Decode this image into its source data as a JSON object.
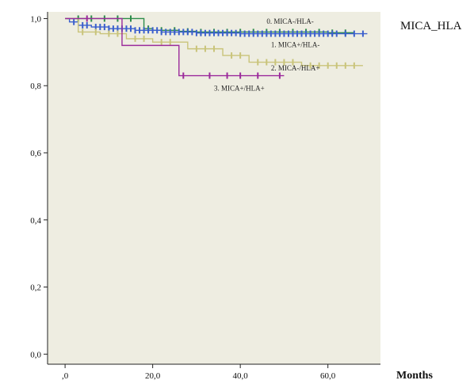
{
  "chart_data": {
    "type": "line",
    "subtype": "kaplan-meier step",
    "legend_title": "MICA_HLA",
    "xlabel": "Months",
    "ylabel": "",
    "xlim": [
      -4,
      72
    ],
    "ylim": [
      -0.03,
      1.02
    ],
    "x_ticks": [
      0,
      20,
      40,
      60
    ],
    "x_tick_labels": [
      ",0",
      "20,0",
      "40,0",
      "60,0"
    ],
    "y_ticks": [
      0,
      0.2,
      0.4,
      0.6,
      0.8,
      1.0
    ],
    "y_tick_labels": [
      "0,0",
      "0,2",
      "0,4",
      "0,6",
      "0,8",
      "1,0"
    ],
    "grid": false,
    "plot_background": "#eeede1",
    "series": [
      {
        "name": "0. MICA-/HLA-",
        "color": "#2c8c4a",
        "steps": [
          [
            0,
            1.0
          ],
          [
            18,
            0.97
          ],
          [
            20,
            0.965
          ],
          [
            26,
            0.962
          ],
          [
            30,
            0.96
          ],
          [
            60,
            0.958
          ],
          [
            66,
            0.958
          ]
        ],
        "censors": [
          3,
          6,
          9,
          12,
          15,
          19,
          22,
          25,
          28,
          31,
          34,
          37,
          40,
          43,
          46,
          49,
          52,
          55,
          58,
          61,
          64
        ],
        "label_at": [
          0.0,
          0.0
        ]
      },
      {
        "name": "1. MICA+/HLA-",
        "color": "#3a5fcd",
        "steps": [
          [
            0,
            1.0
          ],
          [
            1,
            0.99
          ],
          [
            3,
            0.98
          ],
          [
            6,
            0.975
          ],
          [
            10,
            0.97
          ],
          [
            16,
            0.965
          ],
          [
            22,
            0.96
          ],
          [
            30,
            0.957
          ],
          [
            40,
            0.955
          ],
          [
            69,
            0.955
          ]
        ],
        "censors": [
          2,
          4,
          5,
          7,
          8,
          9,
          10,
          11,
          12,
          13,
          14,
          15,
          16,
          17,
          18,
          19,
          20,
          21,
          22,
          23,
          24,
          25,
          26,
          27,
          28,
          29,
          30,
          31,
          32,
          33,
          34,
          35,
          36,
          37,
          38,
          39,
          40,
          41,
          42,
          43,
          44,
          45,
          46,
          47,
          48,
          49,
          50,
          51,
          52,
          53,
          54,
          55,
          56,
          57,
          58,
          59,
          60,
          61,
          62,
          64,
          66,
          68
        ],
        "label_at": [
          0.0,
          0.0
        ]
      },
      {
        "name": "2. MICA-/HLA+",
        "color": "#c9c47a",
        "steps": [
          [
            0,
            1.0
          ],
          [
            3,
            0.96
          ],
          [
            8,
            0.955
          ],
          [
            14,
            0.94
          ],
          [
            20,
            0.93
          ],
          [
            28,
            0.91
          ],
          [
            36,
            0.89
          ],
          [
            42,
            0.87
          ],
          [
            54,
            0.86
          ],
          [
            68,
            0.86
          ]
        ],
        "censors": [
          4,
          7,
          10,
          12,
          16,
          18,
          22,
          24,
          30,
          32,
          34,
          38,
          40,
          44,
          46,
          48,
          50,
          52,
          56,
          58,
          60,
          62,
          64,
          66
        ],
        "label_at": [
          0.0,
          0.0
        ]
      },
      {
        "name": "3. MICA+/HLA+",
        "color": "#9b2a9b",
        "steps": [
          [
            0,
            1.0
          ],
          [
            13,
            0.92
          ],
          [
            26,
            0.83
          ],
          [
            50,
            0.83
          ]
        ],
        "censors": [
          5,
          27,
          33,
          37,
          40,
          44,
          49
        ],
        "label_at": [
          0.0,
          0.0
        ]
      }
    ],
    "annotations": [
      {
        "text": "0. MICA-/HLA-",
        "x": 46,
        "y": 0.985
      },
      {
        "text": "1. MICA+/HLA-",
        "x": 47,
        "y": 0.915
      },
      {
        "text": "2. MICA-/HLA+",
        "x": 47,
        "y": 0.845
      },
      {
        "text": "3. MICA+/HLA+",
        "x": 34,
        "y": 0.785
      }
    ]
  }
}
